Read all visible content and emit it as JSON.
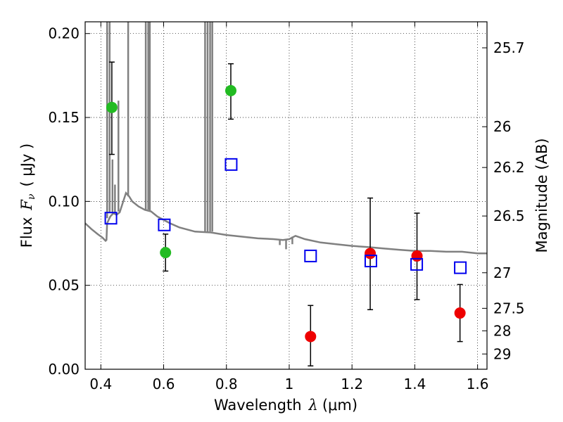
{
  "chart_data": {
    "type": "scatter",
    "xlabel": {
      "prefix": "Wavelength",
      "symbol": "λ",
      "unit": "(μm)"
    },
    "ylabel": {
      "prefix": "Flux",
      "symbol": "F",
      "subscript": "ν",
      "unit": "( μJy )"
    },
    "y2label": "Magnitude (AB)",
    "xlim": [
      0.35,
      1.63
    ],
    "ylim": [
      0.0,
      0.207
    ],
    "grid": true,
    "x_ticks": [
      {
        "value": 0.4,
        "label": "0.4"
      },
      {
        "value": 0.6,
        "label": "0.6"
      },
      {
        "value": 0.8,
        "label": "0.8"
      },
      {
        "value": 1.0,
        "label": "1"
      },
      {
        "value": 1.2,
        "label": "1.2"
      },
      {
        "value": 1.4,
        "label": "1.4"
      },
      {
        "value": 1.6,
        "label": "1.6"
      }
    ],
    "y_ticks": [
      {
        "value": 0.0,
        "label": "0.00"
      },
      {
        "value": 0.05,
        "label": "0.05"
      },
      {
        "value": 0.1,
        "label": "0.10"
      },
      {
        "value": 0.15,
        "label": "0.15"
      },
      {
        "value": 0.2,
        "label": "0.20"
      }
    ],
    "y2_ticks": [
      {
        "flux": 0.1915,
        "label": "25.7"
      },
      {
        "flux": 0.1445,
        "label": "26"
      },
      {
        "flux": 0.1202,
        "label": "26.2"
      },
      {
        "flux": 0.0913,
        "label": "26.5"
      },
      {
        "flux": 0.0575,
        "label": "27"
      },
      {
        "flux": 0.0363,
        "label": "27.5"
      },
      {
        "flux": 0.0229,
        "label": "28"
      },
      {
        "flux": 0.0091,
        "label": "29"
      }
    ],
    "series": [
      {
        "marker": "circle",
        "color": "#22bb22",
        "points": [
          {
            "x": 0.435,
            "y": 0.156,
            "err": [
              0.128,
              0.183
            ]
          },
          {
            "x": 0.606,
            "y": 0.0695,
            "err": [
              0.0585,
              0.0805
            ]
          },
          {
            "x": 0.814,
            "y": 0.166,
            "err": [
              0.149,
              0.182
            ]
          }
        ]
      },
      {
        "marker": "circle",
        "color": "#ee0000",
        "points": [
          {
            "x": 1.068,
            "y": 0.0195,
            "err": [
              0.002,
              0.038
            ]
          },
          {
            "x": 1.258,
            "y": 0.069,
            "err": [
              0.0355,
              0.102
            ]
          },
          {
            "x": 1.407,
            "y": 0.0675,
            "err": [
              0.0415,
              0.093
            ]
          },
          {
            "x": 1.544,
            "y": 0.0335,
            "err": [
              0.0165,
              0.0505
            ]
          }
        ]
      },
      {
        "marker": "open-square",
        "color": "#0000ee",
        "points": [
          {
            "x": 0.432,
            "y": 0.09
          },
          {
            "x": 0.602,
            "y": 0.086
          },
          {
            "x": 0.815,
            "y": 0.122
          },
          {
            "x": 1.068,
            "y": 0.0675
          },
          {
            "x": 1.26,
            "y": 0.0645
          },
          {
            "x": 1.406,
            "y": 0.0625
          },
          {
            "x": 1.545,
            "y": 0.0605
          }
        ]
      }
    ],
    "model_spectrum": {
      "color": "#808080",
      "points": [
        [
          0.35,
          0.087
        ],
        [
          0.37,
          0.0835
        ],
        [
          0.39,
          0.0805
        ],
        [
          0.405,
          0.0785
        ],
        [
          0.415,
          0.0765
        ],
        [
          0.418,
          0.077
        ],
        [
          0.42,
          0.087
        ],
        [
          0.43,
          0.091
        ],
        [
          0.44,
          0.093
        ],
        [
          0.45,
          0.092
        ],
        [
          0.46,
          0.0935
        ],
        [
          0.48,
          0.105
        ],
        [
          0.49,
          0.103
        ],
        [
          0.5,
          0.1
        ],
        [
          0.52,
          0.097
        ],
        [
          0.54,
          0.095
        ],
        [
          0.56,
          0.094
        ],
        [
          0.58,
          0.091
        ],
        [
          0.6,
          0.089
        ],
        [
          0.62,
          0.087
        ],
        [
          0.65,
          0.0845
        ],
        [
          0.7,
          0.082
        ],
        [
          0.75,
          0.0815
        ],
        [
          0.8,
          0.08
        ],
        [
          0.85,
          0.079
        ],
        [
          0.9,
          0.078
        ],
        [
          0.95,
          0.0775
        ],
        [
          0.98,
          0.077
        ],
        [
          1.0,
          0.0775
        ],
        [
          1.02,
          0.0795
        ],
        [
          1.05,
          0.0775
        ],
        [
          1.1,
          0.0755
        ],
        [
          1.15,
          0.0745
        ],
        [
          1.2,
          0.0735
        ],
        [
          1.25,
          0.0728
        ],
        [
          1.3,
          0.072
        ],
        [
          1.35,
          0.0712
        ],
        [
          1.4,
          0.0705
        ],
        [
          1.45,
          0.0705
        ],
        [
          1.5,
          0.07
        ],
        [
          1.55,
          0.07
        ],
        [
          1.6,
          0.069
        ],
        [
          1.63,
          0.069
        ]
      ],
      "emission_lines": [
        {
          "x": 0.42,
          "from": 0.09,
          "to": 0.207
        },
        {
          "x": 0.428,
          "from": 0.093,
          "to": 0.207
        },
        {
          "x": 0.437,
          "from": 0.093,
          "to": 0.125
        },
        {
          "x": 0.445,
          "from": 0.093,
          "to": 0.11
        },
        {
          "x": 0.456,
          "from": 0.094,
          "to": 0.16
        },
        {
          "x": 0.487,
          "from": 0.103,
          "to": 0.207
        },
        {
          "x": 0.543,
          "from": 0.095,
          "to": 0.207
        },
        {
          "x": 0.551,
          "from": 0.095,
          "to": 0.207
        },
        {
          "x": 0.556,
          "from": 0.094,
          "to": 0.207
        },
        {
          "x": 0.732,
          "from": 0.082,
          "to": 0.207
        },
        {
          "x": 0.74,
          "from": 0.082,
          "to": 0.207
        },
        {
          "x": 0.748,
          "from": 0.082,
          "to": 0.207
        },
        {
          "x": 0.755,
          "from": 0.082,
          "to": 0.207
        }
      ],
      "absorption_lines": [
        {
          "x": 0.97,
          "from": 0.077,
          "to": 0.074
        },
        {
          "x": 0.99,
          "from": 0.0775,
          "to": 0.0715
        },
        {
          "x": 1.01,
          "from": 0.079,
          "to": 0.0745
        }
      ]
    }
  }
}
